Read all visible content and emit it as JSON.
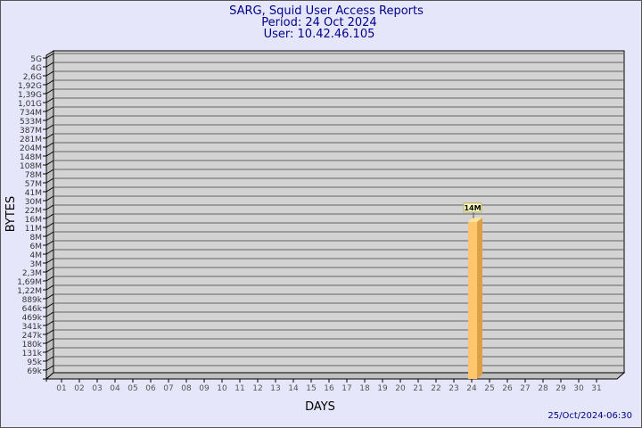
{
  "chart_data": {
    "type": "bar",
    "title": "SARG, Squid User Access Reports",
    "subtitle_period": "Period: 24 Oct 2024",
    "subtitle_user": "User: 10.42.46.105",
    "xlabel": "DAYS",
    "ylabel": "BYTES",
    "y_scale": "log",
    "y_ticks": [
      "5G",
      "4G",
      "2,6G",
      "1,92G",
      "1,39G",
      "1,01G",
      "734M",
      "533M",
      "387M",
      "281M",
      "204M",
      "148M",
      "108M",
      "78M",
      "57M",
      "41M",
      "30M",
      "22M",
      "16M",
      "11M",
      "8M",
      "6M",
      "4M",
      "3M",
      "2,3M",
      "1,69M",
      "1,22M",
      "889k",
      "646k",
      "469k",
      "341k",
      "247k",
      "180k",
      "131k",
      "95k",
      "69k"
    ],
    "categories": [
      "01",
      "02",
      "03",
      "04",
      "05",
      "06",
      "07",
      "08",
      "09",
      "10",
      "11",
      "12",
      "13",
      "14",
      "15",
      "16",
      "17",
      "18",
      "19",
      "20",
      "21",
      "22",
      "23",
      "24",
      "25",
      "26",
      "27",
      "28",
      "29",
      "30",
      "31"
    ],
    "values": [
      {
        "day": "24",
        "bytes": 14000000,
        "label": "14M"
      }
    ],
    "grid": true,
    "bar_color": "#ffc66e",
    "footer": "25/Oct/2024-06:30"
  }
}
